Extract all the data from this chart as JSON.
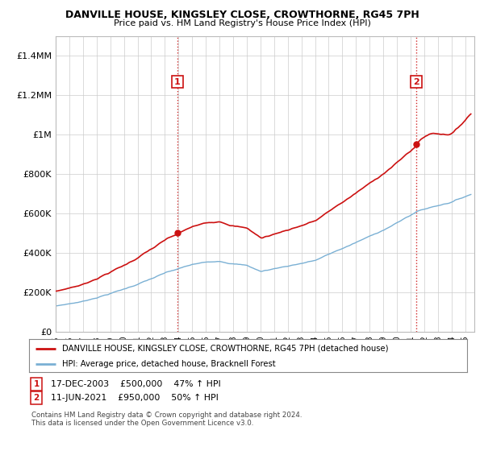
{
  "title": "DANVILLE HOUSE, KINGSLEY CLOSE, CROWTHORNE, RG45 7PH",
  "subtitle": "Price paid vs. HM Land Registry's House Price Index (HPI)",
  "red_label": "DANVILLE HOUSE, KINGSLEY CLOSE, CROWTHORNE, RG45 7PH (detached house)",
  "blue_label": "HPI: Average price, detached house, Bracknell Forest",
  "red_color": "#cc1111",
  "blue_color": "#7ab0d4",
  "annotation1": "17-DEC-2003    £500,000    47% ↑ HPI",
  "annotation2": "11-JUN-2021    £950,000    50% ↑ HPI",
  "footer1": "Contains HM Land Registry data © Crown copyright and database right 2024.",
  "footer2": "This data is licensed under the Open Government Licence v3.0.",
  "ylim_max": 1500000,
  "background_color": "#ffffff",
  "sale1_year": 2003,
  "sale1_month": 12,
  "sale1_price": 500000,
  "sale2_year": 2021,
  "sale2_month": 6,
  "sale2_price": 950000
}
